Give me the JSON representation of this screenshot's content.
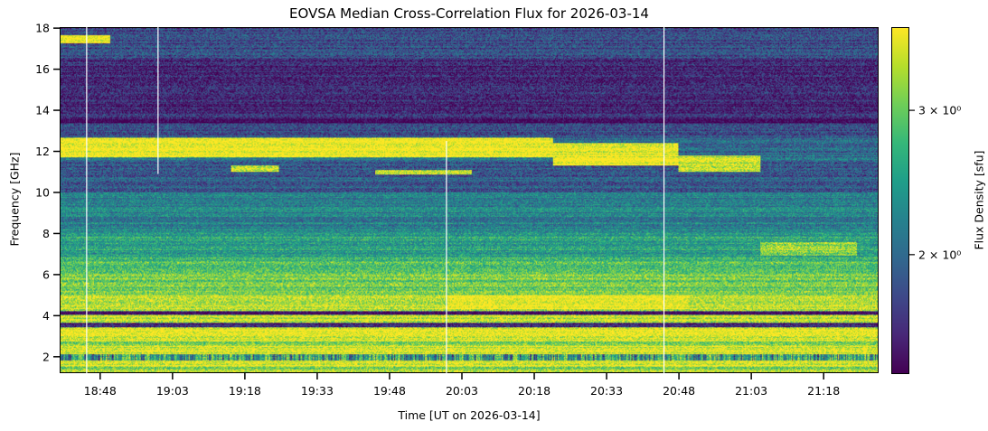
{
  "chart_data": {
    "type": "heatmap",
    "title": "EOVSA Median Cross-Correlation Flux for 2026-03-14",
    "xlabel": "Time [UT on 2026-03-14]",
    "ylabel": "Frequency [GHz]",
    "colorbar_label": "Flux Density [sfu]",
    "colormap": "viridis",
    "colorbar_scale": "log",
    "clim": [
      1.43,
      3.79
    ],
    "colorbar_ticks": [
      {
        "value": 3,
        "label": "3 × 10⁰"
      },
      {
        "value": 2,
        "label": "2 × 10⁰"
      }
    ],
    "xlim_minutes_utc": [
      1119.6,
      1289.4
    ],
    "ylim": [
      1.2,
      18.05
    ],
    "x_ticks": [
      {
        "minute": 1128,
        "label": "18:48"
      },
      {
        "minute": 1143,
        "label": "19:03"
      },
      {
        "minute": 1158,
        "label": "19:18"
      },
      {
        "minute": 1173,
        "label": "19:33"
      },
      {
        "minute": 1188,
        "label": "19:48"
      },
      {
        "minute": 1203,
        "label": "20:03"
      },
      {
        "minute": 1218,
        "label": "20:18"
      },
      {
        "minute": 1233,
        "label": "20:33"
      },
      {
        "minute": 1248,
        "label": "20:48"
      },
      {
        "minute": 1263,
        "label": "21:03"
      },
      {
        "minute": 1278,
        "label": "21:18"
      }
    ],
    "y_ticks": [
      2,
      4,
      6,
      8,
      10,
      12,
      14,
      16,
      18
    ],
    "data_gaps_minutes_utc": [
      {
        "minute": 1125.2,
        "f_range": [
          1.2,
          18.05
        ]
      },
      {
        "minute": 1140.0,
        "f_range": [
          10.9,
          18.05
        ]
      },
      {
        "minute": 1199.8,
        "f_range": [
          1.2,
          12.5
        ]
      },
      {
        "minute": 1244.9,
        "f_range": [
          1.2,
          18.05
        ]
      }
    ],
    "frequency_profile_sfu": [
      [
        1.2,
        1.5,
        3.2
      ],
      [
        1.5,
        1.75,
        3.7
      ],
      [
        1.75,
        2.1,
        2.4
      ],
      [
        2.1,
        2.5,
        3.6
      ],
      [
        2.5,
        2.7,
        3.0
      ],
      [
        2.7,
        3.4,
        3.7
      ],
      [
        3.4,
        3.6,
        1.6
      ],
      [
        3.6,
        4.0,
        3.5
      ],
      [
        4.0,
        4.2,
        1.5
      ],
      [
        4.2,
        5.0,
        3.4
      ],
      [
        5.0,
        6.0,
        3.0
      ],
      [
        6.0,
        6.6,
        2.8
      ],
      [
        6.6,
        7.0,
        2.6
      ],
      [
        7.0,
        8.0,
        2.5
      ],
      [
        8.0,
        10.0,
        2.2
      ],
      [
        10.0,
        11.6,
        1.85
      ],
      [
        11.6,
        12.7,
        2.0
      ],
      [
        12.7,
        13.4,
        1.8
      ],
      [
        13.4,
        13.7,
        1.5
      ],
      [
        13.7,
        16.5,
        1.6
      ],
      [
        16.5,
        18.05,
        1.8
      ]
    ],
    "features_sfu": [
      {
        "t": [
          1119.6,
          1222
        ],
        "f": [
          11.7,
          12.7
        ],
        "value": 3.9
      },
      {
        "t": [
          1222,
          1248
        ],
        "f": [
          11.3,
          12.4
        ],
        "value": 3.8
      },
      {
        "t": [
          1248,
          1265
        ],
        "f": [
          11.0,
          11.8
        ],
        "value": 3.5
      },
      {
        "t": [
          1119.6,
          1130
        ],
        "f": [
          17.3,
          17.7
        ],
        "value": 3.8
      },
      {
        "t": [
          1155,
          1165
        ],
        "f": [
          11.0,
          11.3
        ],
        "value": 3.5
      },
      {
        "t": [
          1185,
          1205
        ],
        "f": [
          10.9,
          11.1
        ],
        "value": 3.5
      },
      {
        "t": [
          1265,
          1285
        ],
        "f": [
          6.9,
          7.6
        ],
        "value": 3.3
      },
      {
        "t": [
          1200,
          1250
        ],
        "f": [
          4.3,
          5.0
        ],
        "value": 3.8
      }
    ]
  }
}
